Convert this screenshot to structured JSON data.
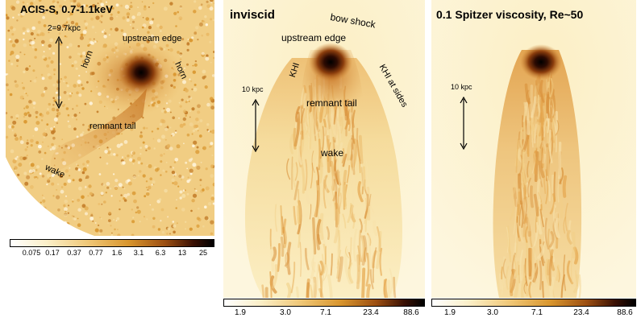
{
  "panels": [
    {
      "title": "ACIS-S, 0.7-1.1keV",
      "scale_label": "2=9.7kpc",
      "annotations": {
        "upstream_edge": "upstream edge",
        "horn_left": "horn",
        "horn_right": "horn",
        "remnant_tail": "remnant tail",
        "wake": "wake"
      },
      "colorbar_ticks": [
        "0.075",
        "0.17",
        "0.37",
        "0.77",
        "1.6",
        "3.1",
        "6.3",
        "13",
        "25"
      ]
    },
    {
      "title": "inviscid",
      "scale_label": "10 kpc",
      "annotations": {
        "bow_shock": "bow shock",
        "upstream_edge": "upstream edge",
        "khi_left": "KHI",
        "khi_right": "KHI at sides",
        "remnant_tail": "remnant tail",
        "wake": "wake"
      },
      "colorbar_ticks": [
        "1.9",
        "3.0",
        "7.1",
        "23.4",
        "88.6"
      ]
    },
    {
      "title": "0.1 Spitzer viscosity, Re~50",
      "scale_label": "10 kpc",
      "colorbar_ticks": [
        "1.9",
        "3.0",
        "7.1",
        "23.4",
        "88.6"
      ]
    }
  ],
  "colormap": [
    "#ffffff",
    "#fbefc8",
    "#f0c878",
    "#d9962e",
    "#9c4f12",
    "#3a1003",
    "#000000"
  ]
}
